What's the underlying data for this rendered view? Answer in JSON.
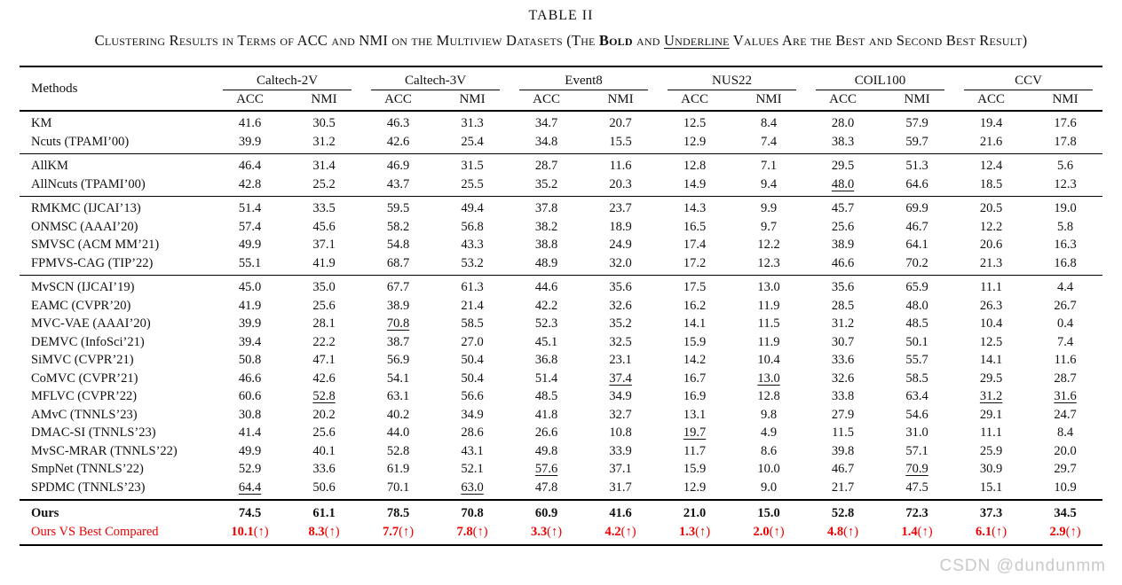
{
  "title": "TABLE II",
  "caption_parts": [
    {
      "text": "Clustering Results in Terms of ACC and NMI on the Multiview Datasets (The "
    },
    {
      "text": "Bold",
      "bold": true
    },
    {
      "text": " and "
    },
    {
      "text": "Underline",
      "underline": true
    },
    {
      "text": " Values Are the Best and Second Best Result)"
    }
  ],
  "table": {
    "methods_header": "Methods",
    "datasets": [
      "Caltech-2V",
      "Caltech-3V",
      "Event8",
      "NUS22",
      "COIL100",
      "CCV"
    ],
    "sub_headers": [
      "ACC",
      "NMI"
    ],
    "groups": [
      {
        "rows": [
          {
            "method": "KM",
            "values": [
              "41.6",
              "30.5",
              "46.3",
              "31.3",
              "34.7",
              "20.7",
              "12.5",
              "8.4",
              "28.0",
              "57.9",
              "19.4",
              "17.6"
            ],
            "underlined": []
          },
          {
            "method": "Ncuts (TPAMI’00)",
            "values": [
              "39.9",
              "31.2",
              "42.6",
              "25.4",
              "34.8",
              "15.5",
              "12.9",
              "7.4",
              "38.3",
              "59.7",
              "21.6",
              "17.8"
            ],
            "underlined": []
          }
        ]
      },
      {
        "rows": [
          {
            "method": "AllKM",
            "values": [
              "46.4",
              "31.4",
              "46.9",
              "31.5",
              "28.7",
              "11.6",
              "12.8",
              "7.1",
              "29.5",
              "51.3",
              "12.4",
              "5.6"
            ],
            "underlined": []
          },
          {
            "method": "AllNcuts (TPAMI’00)",
            "values": [
              "42.8",
              "25.2",
              "43.7",
              "25.5",
              "35.2",
              "20.3",
              "14.9",
              "9.4",
              "48.0",
              "64.6",
              "18.5",
              "12.3"
            ],
            "underlined": [
              8
            ]
          }
        ]
      },
      {
        "rows": [
          {
            "method": "RMKMC (IJCAI’13)",
            "values": [
              "51.4",
              "33.5",
              "59.5",
              "49.4",
              "37.8",
              "23.7",
              "14.3",
              "9.9",
              "45.7",
              "69.9",
              "20.5",
              "19.0"
            ],
            "underlined": []
          },
          {
            "method": "ONMSC (AAAI’20)",
            "values": [
              "57.4",
              "45.6",
              "58.2",
              "56.8",
              "38.2",
              "18.9",
              "16.5",
              "9.7",
              "25.6",
              "46.7",
              "12.2",
              "5.8"
            ],
            "underlined": []
          },
          {
            "method": "SMVSC (ACM MM’21)",
            "values": [
              "49.9",
              "37.1",
              "54.8",
              "43.3",
              "38.8",
              "24.9",
              "17.4",
              "12.2",
              "38.9",
              "64.1",
              "20.6",
              "16.3"
            ],
            "underlined": []
          },
          {
            "method": "FPMVS-CAG (TIP’22)",
            "values": [
              "55.1",
              "41.9",
              "68.7",
              "53.2",
              "48.9",
              "32.0",
              "17.2",
              "12.3",
              "46.6",
              "70.2",
              "21.3",
              "16.8"
            ],
            "underlined": []
          }
        ]
      },
      {
        "rows": [
          {
            "method": "MvSCN (IJCAI’19)",
            "values": [
              "45.0",
              "35.0",
              "67.7",
              "61.3",
              "44.6",
              "35.6",
              "17.5",
              "13.0",
              "35.6",
              "65.9",
              "11.1",
              "4.4"
            ],
            "underlined": []
          },
          {
            "method": "EAMC (CVPR’20)",
            "values": [
              "41.9",
              "25.6",
              "38.9",
              "21.4",
              "42.2",
              "32.6",
              "16.2",
              "11.9",
              "28.5",
              "48.0",
              "26.3",
              "26.7"
            ],
            "underlined": []
          },
          {
            "method": "MVC-VAE (AAAI’20)",
            "values": [
              "39.9",
              "28.1",
              "70.8",
              "58.5",
              "52.3",
              "35.2",
              "14.1",
              "11.5",
              "31.2",
              "48.5",
              "10.4",
              "0.4"
            ],
            "underlined": [
              2
            ]
          },
          {
            "method": "DEMVC (InfoSci’21)",
            "values": [
              "39.4",
              "22.2",
              "38.7",
              "27.0",
              "45.1",
              "32.5",
              "15.9",
              "11.9",
              "30.7",
              "50.1",
              "12.5",
              "7.4"
            ],
            "underlined": []
          },
          {
            "method": "SiMVC (CVPR’21)",
            "values": [
              "50.8",
              "47.1",
              "56.9",
              "50.4",
              "36.8",
              "23.1",
              "14.2",
              "10.4",
              "33.6",
              "55.7",
              "14.1",
              "11.6"
            ],
            "underlined": []
          },
          {
            "method": "CoMVC (CVPR’21)",
            "values": [
              "46.6",
              "42.6",
              "54.1",
              "50.4",
              "51.4",
              "37.4",
              "16.7",
              "13.0",
              "32.6",
              "58.5",
              "29.5",
              "28.7"
            ],
            "underlined": [
              5,
              7
            ]
          },
          {
            "method": "MFLVC (CVPR’22)",
            "values": [
              "60.6",
              "52.8",
              "63.1",
              "56.6",
              "48.5",
              "34.9",
              "16.9",
              "12.8",
              "33.8",
              "63.4",
              "31.2",
              "31.6"
            ],
            "underlined": [
              1,
              10,
              11
            ]
          },
          {
            "method": "AMvC (TNNLS’23)",
            "values": [
              "30.8",
              "20.2",
              "40.2",
              "34.9",
              "41.8",
              "32.7",
              "13.1",
              "9.8",
              "27.9",
              "54.6",
              "29.1",
              "24.7"
            ],
            "underlined": []
          },
          {
            "method": "DMAC-SI (TNNLS’23)",
            "values": [
              "41.4",
              "25.6",
              "44.0",
              "28.6",
              "26.6",
              "10.8",
              "19.7",
              "4.9",
              "11.5",
              "31.0",
              "11.1",
              "8.4"
            ],
            "underlined": [
              6
            ]
          },
          {
            "method": "MvSC-MRAR (TNNLS’22)",
            "values": [
              "49.9",
              "40.1",
              "52.8",
              "43.1",
              "49.8",
              "33.9",
              "11.7",
              "8.6",
              "39.8",
              "57.1",
              "25.9",
              "20.0"
            ],
            "underlined": []
          },
          {
            "method": "SmpNet (TNNLS’22)",
            "values": [
              "52.9",
              "33.6",
              "61.9",
              "52.1",
              "57.6",
              "37.1",
              "15.9",
              "10.0",
              "46.7",
              "70.9",
              "30.9",
              "29.7"
            ],
            "underlined": [
              4,
              9
            ]
          },
          {
            "method": "SPDMC (TNNLS’23)",
            "values": [
              "64.4",
              "50.6",
              "70.1",
              "63.0",
              "47.8",
              "31.7",
              "12.9",
              "9.0",
              "21.7",
              "47.5",
              "15.1",
              "10.9"
            ],
            "underlined": [
              0,
              3
            ]
          }
        ]
      }
    ],
    "ours_row": {
      "method": "Ours",
      "values": [
        "74.5",
        "61.1",
        "78.5",
        "70.8",
        "60.9",
        "41.6",
        "21.0",
        "15.0",
        "52.8",
        "72.3",
        "37.3",
        "34.5"
      ]
    },
    "vs_row": {
      "method": "Ours VS Best Compared",
      "values": [
        "10.1",
        "8.3",
        "7.7",
        "7.8",
        "3.3",
        "4.2",
        "1.3",
        "2.0",
        "4.8",
        "1.4",
        "6.1",
        "2.9"
      ],
      "suffix": "(↑)"
    }
  },
  "colors": {
    "accent_red": "#ec0000",
    "text": "#111111",
    "watermark": "#c9c9c9"
  },
  "watermark": "CSDN @dundunmm"
}
